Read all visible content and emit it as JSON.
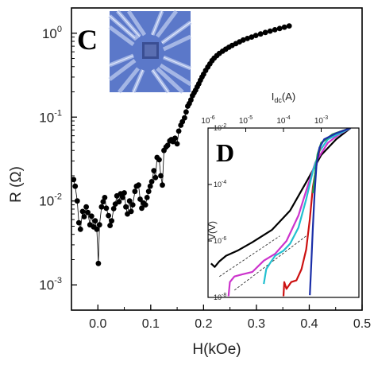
{
  "chart_data": [
    {
      "panel": "C",
      "type": "scatter",
      "xlabel": "H(kOe)",
      "ylabel": "R (Ω)",
      "xscale": "linear",
      "yscale": "log",
      "xlim": [
        -0.05,
        0.5
      ],
      "ylim": [
        0.0005,
        2
      ],
      "x_ticks": [
        0.0,
        0.1,
        0.2,
        0.3,
        0.4,
        0.5
      ],
      "x_tick_labels": [
        "0.0",
        "0.1",
        "0.2",
        "0.3",
        "0.4",
        "0.5"
      ],
      "y_ticks": [
        0.001,
        0.01,
        0.1,
        1
      ],
      "y_tick_labels": [
        "10",
        "10",
        "10",
        "10"
      ],
      "y_tick_exponents": [
        "-3",
        "-2",
        "-1",
        "0"
      ],
      "marker_color": "#000000",
      "line_color": "#000000",
      "points": [
        [
          -0.046,
          0.018
        ],
        [
          -0.043,
          0.015
        ],
        [
          -0.039,
          0.01
        ],
        [
          -0.036,
          0.0055
        ],
        [
          -0.033,
          0.0046
        ],
        [
          -0.029,
          0.0075
        ],
        [
          -0.026,
          0.0065
        ],
        [
          -0.022,
          0.0085
        ],
        [
          -0.019,
          0.0073
        ],
        [
          -0.015,
          0.0052
        ],
        [
          -0.012,
          0.0066
        ],
        [
          -0.008,
          0.0049
        ],
        [
          -0.005,
          0.0058
        ],
        [
          -0.002,
          0.0046
        ],
        [
          0.001,
          0.0018
        ],
        [
          0.003,
          0.0052
        ],
        [
          0.007,
          0.0085
        ],
        [
          0.01,
          0.0098
        ],
        [
          0.013,
          0.011
        ],
        [
          0.016,
          0.0082
        ],
        [
          0.02,
          0.0067
        ],
        [
          0.023,
          0.0051
        ],
        [
          0.026,
          0.0058
        ],
        [
          0.03,
          0.0081
        ],
        [
          0.033,
          0.0092
        ],
        [
          0.036,
          0.0115
        ],
        [
          0.04,
          0.0098
        ],
        [
          0.043,
          0.0122
        ],
        [
          0.047,
          0.011
        ],
        [
          0.05,
          0.0125
        ],
        [
          0.053,
          0.0085
        ],
        [
          0.056,
          0.007
        ],
        [
          0.06,
          0.01
        ],
        [
          0.063,
          0.0075
        ],
        [
          0.066,
          0.009
        ],
        [
          0.07,
          0.013
        ],
        [
          0.073,
          0.015
        ],
        [
          0.077,
          0.0155
        ],
        [
          0.08,
          0.0105
        ],
        [
          0.083,
          0.0082
        ],
        [
          0.086,
          0.0095
        ],
        [
          0.09,
          0.009
        ],
        [
          0.093,
          0.011
        ],
        [
          0.096,
          0.013
        ],
        [
          0.099,
          0.015
        ],
        [
          0.102,
          0.017
        ],
        [
          0.106,
          0.023
        ],
        [
          0.109,
          0.019
        ],
        [
          0.112,
          0.033
        ],
        [
          0.116,
          0.031
        ],
        [
          0.119,
          0.02
        ],
        [
          0.122,
          0.0155
        ],
        [
          0.125,
          0.04
        ],
        [
          0.129,
          0.044
        ],
        [
          0.132,
          0.046
        ],
        [
          0.136,
          0.052
        ],
        [
          0.139,
          0.054
        ],
        [
          0.142,
          0.051
        ],
        [
          0.146,
          0.056
        ],
        [
          0.15,
          0.048
        ],
        [
          0.153,
          0.068
        ],
        [
          0.157,
          0.08
        ],
        [
          0.16,
          0.088
        ],
        [
          0.164,
          0.098
        ],
        [
          0.167,
          0.115
        ],
        [
          0.17,
          0.135
        ],
        [
          0.173,
          0.145
        ],
        [
          0.176,
          0.16
        ],
        [
          0.179,
          0.18
        ],
        [
          0.182,
          0.195
        ],
        [
          0.185,
          0.21
        ],
        [
          0.188,
          0.23
        ],
        [
          0.191,
          0.25
        ],
        [
          0.194,
          0.275
        ],
        [
          0.197,
          0.3
        ],
        [
          0.2,
          0.325
        ],
        [
          0.204,
          0.36
        ],
        [
          0.208,
          0.395
        ],
        [
          0.212,
          0.43
        ],
        [
          0.216,
          0.47
        ],
        [
          0.22,
          0.505
        ],
        [
          0.225,
          0.54
        ],
        [
          0.23,
          0.575
        ],
        [
          0.236,
          0.61
        ],
        [
          0.242,
          0.645
        ],
        [
          0.248,
          0.68
        ],
        [
          0.254,
          0.715
        ],
        [
          0.261,
          0.75
        ],
        [
          0.268,
          0.79
        ],
        [
          0.275,
          0.83
        ],
        [
          0.283,
          0.865
        ],
        [
          0.291,
          0.9
        ],
        [
          0.299,
          0.94
        ],
        [
          0.308,
          0.98
        ],
        [
          0.317,
          1.02
        ],
        [
          0.326,
          1.06
        ],
        [
          0.335,
          1.1
        ],
        [
          0.344,
          1.14
        ],
        [
          0.353,
          1.18
        ],
        [
          0.362,
          1.22
        ]
      ]
    },
    {
      "panel": "D",
      "type": "line",
      "xlabel": "I",
      "xlabel_sub": "dc",
      "xlabel_unit": "(A)",
      "ylabel": "V(V)",
      "xscale": "log",
      "yscale": "log",
      "xlim": [
        1e-06,
        0.01
      ],
      "ylim": [
        1e-08,
        0.01
      ],
      "x_ticks": [
        1e-06,
        1e-05,
        0.0001,
        0.001
      ],
      "x_tick_labels": [
        "10",
        "10",
        "10",
        "10"
      ],
      "x_tick_exponents": [
        "-6",
        "-5",
        "-4",
        "-3"
      ],
      "y_ticks": [
        1e-08,
        1e-06,
        0.0001,
        0.01
      ],
      "y_tick_labels": [
        "10",
        "10",
        "10",
        "10"
      ],
      "y_tick_exponents": [
        "-8",
        "-6",
        "-4",
        "-2"
      ],
      "series": [
        {
          "color": "#000000",
          "points": [
            [
              1.2e-06,
              1.6e-07
            ],
            [
              1.5e-06,
              1.2e-07
            ],
            [
              2e-06,
              1.9e-07
            ],
            [
              3e-06,
              3e-07
            ],
            [
              6e-06,
              4.5e-07
            ],
            [
              1.5e-05,
              9e-07
            ],
            [
              5e-05,
              2.5e-06
            ],
            [
              0.00015,
              1.2e-05
            ],
            [
              0.0004,
              0.00012
            ],
            [
              0.001,
              0.0011
            ],
            [
              0.0025,
              0.004
            ],
            [
              0.006,
              0.01
            ]
          ]
        },
        {
          "color": "#cc33cc",
          "points": [
            [
              3.5e-06,
              1.1e-08
            ],
            [
              3.8e-06,
              3.5e-08
            ],
            [
              5e-06,
              5.5e-08
            ],
            [
              8e-06,
              6.5e-08
            ],
            [
              1.5e-05,
              8e-08
            ],
            [
              3e-05,
              2e-07
            ],
            [
              6e-05,
              3.5e-07
            ],
            [
              0.00012,
              1e-06
            ],
            [
              0.00025,
              8e-06
            ],
            [
              0.0004,
              6e-05
            ],
            [
              0.0007,
              0.0006
            ],
            [
              0.0015,
              0.003
            ],
            [
              0.003,
              0.006
            ],
            [
              0.006,
              0.01
            ]
          ]
        },
        {
          "color": "#22c0d0",
          "points": [
            [
              3e-05,
              3e-08
            ],
            [
              3.5e-05,
              1e-07
            ],
            [
              4.5e-05,
              1.7e-07
            ],
            [
              6e-05,
              3e-07
            ],
            [
              0.0001,
              4.5e-07
            ],
            [
              0.00015,
              8e-07
            ],
            [
              0.00025,
              3e-06
            ],
            [
              0.0004,
              3e-05
            ],
            [
              0.0006,
              0.0003
            ],
            [
              0.0009,
              0.0015
            ],
            [
              0.0015,
              0.004
            ],
            [
              0.006,
              0.01
            ]
          ]
        },
        {
          "color": "#cc1111",
          "points": [
            [
              0.0001,
              1.1e-08
            ],
            [
              0.000105,
              3.5e-08
            ],
            [
              0.00012,
              2e-08
            ],
            [
              0.00016,
              3.5e-08
            ],
            [
              0.00022,
              4e-08
            ],
            [
              0.0003,
              1e-07
            ],
            [
              0.0004,
              5e-07
            ],
            [
              0.0005,
              6e-06
            ],
            [
              0.0006,
              8e-05
            ],
            [
              0.0008,
              0.0008
            ],
            [
              0.001,
              0.003
            ],
            [
              0.002,
              0.006
            ],
            [
              0.006,
              0.01
            ]
          ]
        },
        {
          "color": "#22aa44",
          "points": [
            [
              0.0006,
              5e-05
            ],
            [
              0.0007,
              0.0003
            ],
            [
              0.0008,
              0.0012
            ],
            [
              0.001,
              0.003
            ],
            [
              0.002,
              0.006
            ],
            [
              0.006,
              0.01
            ]
          ]
        },
        {
          "color": "#1a2ea8",
          "points": [
            [
              0.0005,
              1.2e-08
            ],
            [
              0.00055,
              2e-07
            ],
            [
              0.0006,
              3e-06
            ],
            [
              0.00067,
              5e-05
            ],
            [
              0.00075,
              0.0005
            ],
            [
              0.0009,
              0.002
            ],
            [
              0.0012,
              0.004
            ],
            [
              0.0025,
              0.0065
            ],
            [
              0.006,
              0.01
            ]
          ]
        }
      ],
      "guide_lines": [
        {
          "style": "dashed",
          "color": "#333333",
          "points": [
            [
              2e-06,
              5.5e-08
            ],
            [
              8e-05,
              1.5e-06
            ]
          ]
        },
        {
          "style": "dashed",
          "color": "#333333",
          "points": [
            [
              5e-06,
              1.8e-08
            ],
            [
              0.0004,
              1.5e-06
            ]
          ]
        }
      ]
    }
  ],
  "panel_labels": {
    "c": "C",
    "d": "D"
  }
}
